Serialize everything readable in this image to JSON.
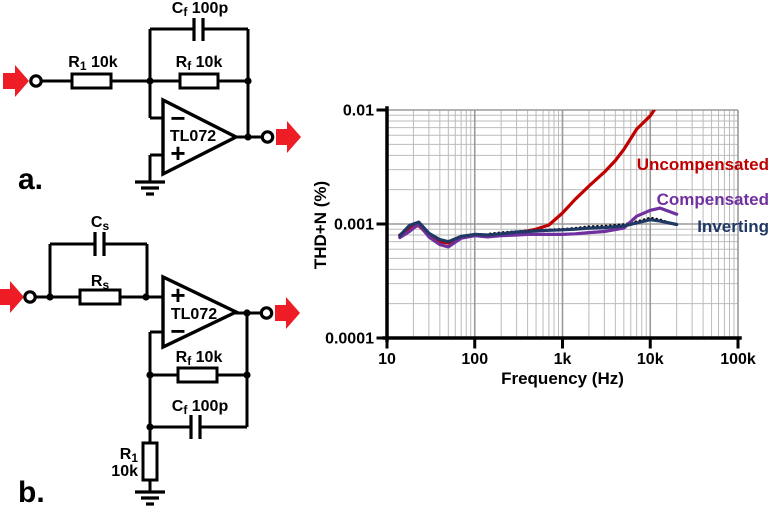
{
  "colors": {
    "arrow_red": "#ee1c25",
    "wire_black": "#000000",
    "grid_minor": "#bbbbbb",
    "grid_major": "#9a9a9a",
    "axis_black": "#000000"
  },
  "circuit_a": {
    "panel_label": "a.",
    "labels": {
      "cf": {
        "base": "C",
        "sub": "f",
        "rest": " 100p"
      },
      "r1": {
        "base": "R",
        "sub": "1",
        "rest": " 10k"
      },
      "rf": {
        "base": "R",
        "sub": "f",
        "rest": " 10k"
      },
      "opamp": "TL072",
      "inverting_input": "−",
      "noninverting_input": "+"
    }
  },
  "circuit_b": {
    "panel_label": "b.",
    "labels": {
      "cs": {
        "base": "C",
        "sub": "s",
        "rest": ""
      },
      "rs": {
        "base": "R",
        "sub": "s",
        "rest": ""
      },
      "rf": {
        "base": "R",
        "sub": "f",
        "rest": " 10k"
      },
      "cf": {
        "base": "C",
        "sub": "f",
        "rest": " 100p"
      },
      "r1": {
        "base": "R",
        "sub": "1",
        "rest": ""
      },
      "r1_value": "10k",
      "opamp": "TL072",
      "inverting_input": "−",
      "noninverting_input": "+"
    }
  },
  "chart_data": {
    "type": "line",
    "title": "",
    "xlabel": "Frequency (Hz)",
    "ylabel": "THD+N (%)",
    "xscale": "log",
    "yscale": "log",
    "xlim": [
      10,
      100000
    ],
    "ylim": [
      0.0001,
      0.01
    ],
    "grid": true,
    "legend_position": "inline-right",
    "xticks": [
      {
        "label": "10",
        "value": 10
      },
      {
        "label": "100",
        "value": 100
      },
      {
        "label": "1k",
        "value": 1000
      },
      {
        "label": "10k",
        "value": 10000
      },
      {
        "label": "100k",
        "value": 100000
      }
    ],
    "yticks": [
      {
        "label": "0.01",
        "value": 0.01
      },
      {
        "label": "0.001",
        "value": 0.001
      },
      {
        "label": "0.0001",
        "value": 0.0001
      }
    ],
    "series": [
      {
        "name": "Uncompensated",
        "color": "#c00000",
        "style": "solid",
        "points": [
          [
            14,
            0.0008
          ],
          [
            18,
            0.00092
          ],
          [
            23,
            0.00097
          ],
          [
            30,
            0.00079
          ],
          [
            40,
            0.0007
          ],
          [
            50,
            0.00068
          ],
          [
            70,
            0.00077
          ],
          [
            100,
            0.0008
          ],
          [
            140,
            0.00079
          ],
          [
            200,
            0.00081
          ],
          [
            300,
            0.00084
          ],
          [
            400,
            0.00087
          ],
          [
            500,
            0.0009
          ],
          [
            700,
            0.00098
          ],
          [
            1000,
            0.00125
          ],
          [
            1400,
            0.00165
          ],
          [
            2000,
            0.00215
          ],
          [
            3000,
            0.00285
          ],
          [
            4000,
            0.0036
          ],
          [
            5000,
            0.0045
          ],
          [
            7000,
            0.0068
          ],
          [
            10000,
            0.0089
          ],
          [
            12500,
            0.0115
          ]
        ]
      },
      {
        "name": "",
        "color": "#000000",
        "style": "dotted",
        "points": [
          [
            150,
            0.00082
          ],
          [
            200,
            0.00084
          ],
          [
            300,
            0.00086
          ],
          [
            400,
            0.00087
          ],
          [
            500,
            0.00088
          ],
          [
            700,
            0.00089
          ],
          [
            1000,
            0.0009
          ],
          [
            1400,
            0.00092
          ],
          [
            2000,
            0.00095
          ],
          [
            3000,
            0.00096
          ],
          [
            5000,
            0.00099
          ],
          [
            7000,
            0.00105
          ],
          [
            10000,
            0.00113
          ],
          [
            13000,
            0.00109
          ],
          [
            18000,
            0.001
          ]
        ]
      },
      {
        "name": "Compensated",
        "color": "#7030a0",
        "style": "solid",
        "points": [
          [
            14,
            0.00076
          ],
          [
            18,
            0.00086
          ],
          [
            23,
            0.001
          ],
          [
            30,
            0.00077
          ],
          [
            40,
            0.00066
          ],
          [
            50,
            0.00063
          ],
          [
            70,
            0.00075
          ],
          [
            100,
            0.00079
          ],
          [
            140,
            0.00077
          ],
          [
            200,
            0.00079
          ],
          [
            300,
            0.0008
          ],
          [
            400,
            0.00081
          ],
          [
            500,
            0.00081
          ],
          [
            700,
            0.00081
          ],
          [
            1000,
            0.00081
          ],
          [
            1400,
            0.00082
          ],
          [
            2000,
            0.00084
          ],
          [
            3000,
            0.00086
          ],
          [
            5000,
            0.00092
          ],
          [
            7000,
            0.00117
          ],
          [
            10000,
            0.00132
          ],
          [
            13000,
            0.00138
          ],
          [
            20000,
            0.00122
          ]
        ]
      },
      {
        "name": "Inverting",
        "color": "#1f3864",
        "style": "solid",
        "points": [
          [
            14,
            0.00079
          ],
          [
            18,
            0.00097
          ],
          [
            23,
            0.00104
          ],
          [
            30,
            0.00083
          ],
          [
            40,
            0.00073
          ],
          [
            50,
            0.0007
          ],
          [
            70,
            0.00078
          ],
          [
            100,
            0.00081
          ],
          [
            140,
            0.0008
          ],
          [
            200,
            0.00082
          ],
          [
            300,
            0.00085
          ],
          [
            400,
            0.00086
          ],
          [
            500,
            0.00087
          ],
          [
            700,
            0.00088
          ],
          [
            1000,
            0.00089
          ],
          [
            1400,
            0.0009
          ],
          [
            2000,
            0.00092
          ],
          [
            3000,
            0.00093
          ],
          [
            5000,
            0.00096
          ],
          [
            7000,
            0.00102
          ],
          [
            10000,
            0.00109
          ],
          [
            13000,
            0.00106
          ],
          [
            20000,
            0.00099
          ]
        ]
      }
    ]
  }
}
